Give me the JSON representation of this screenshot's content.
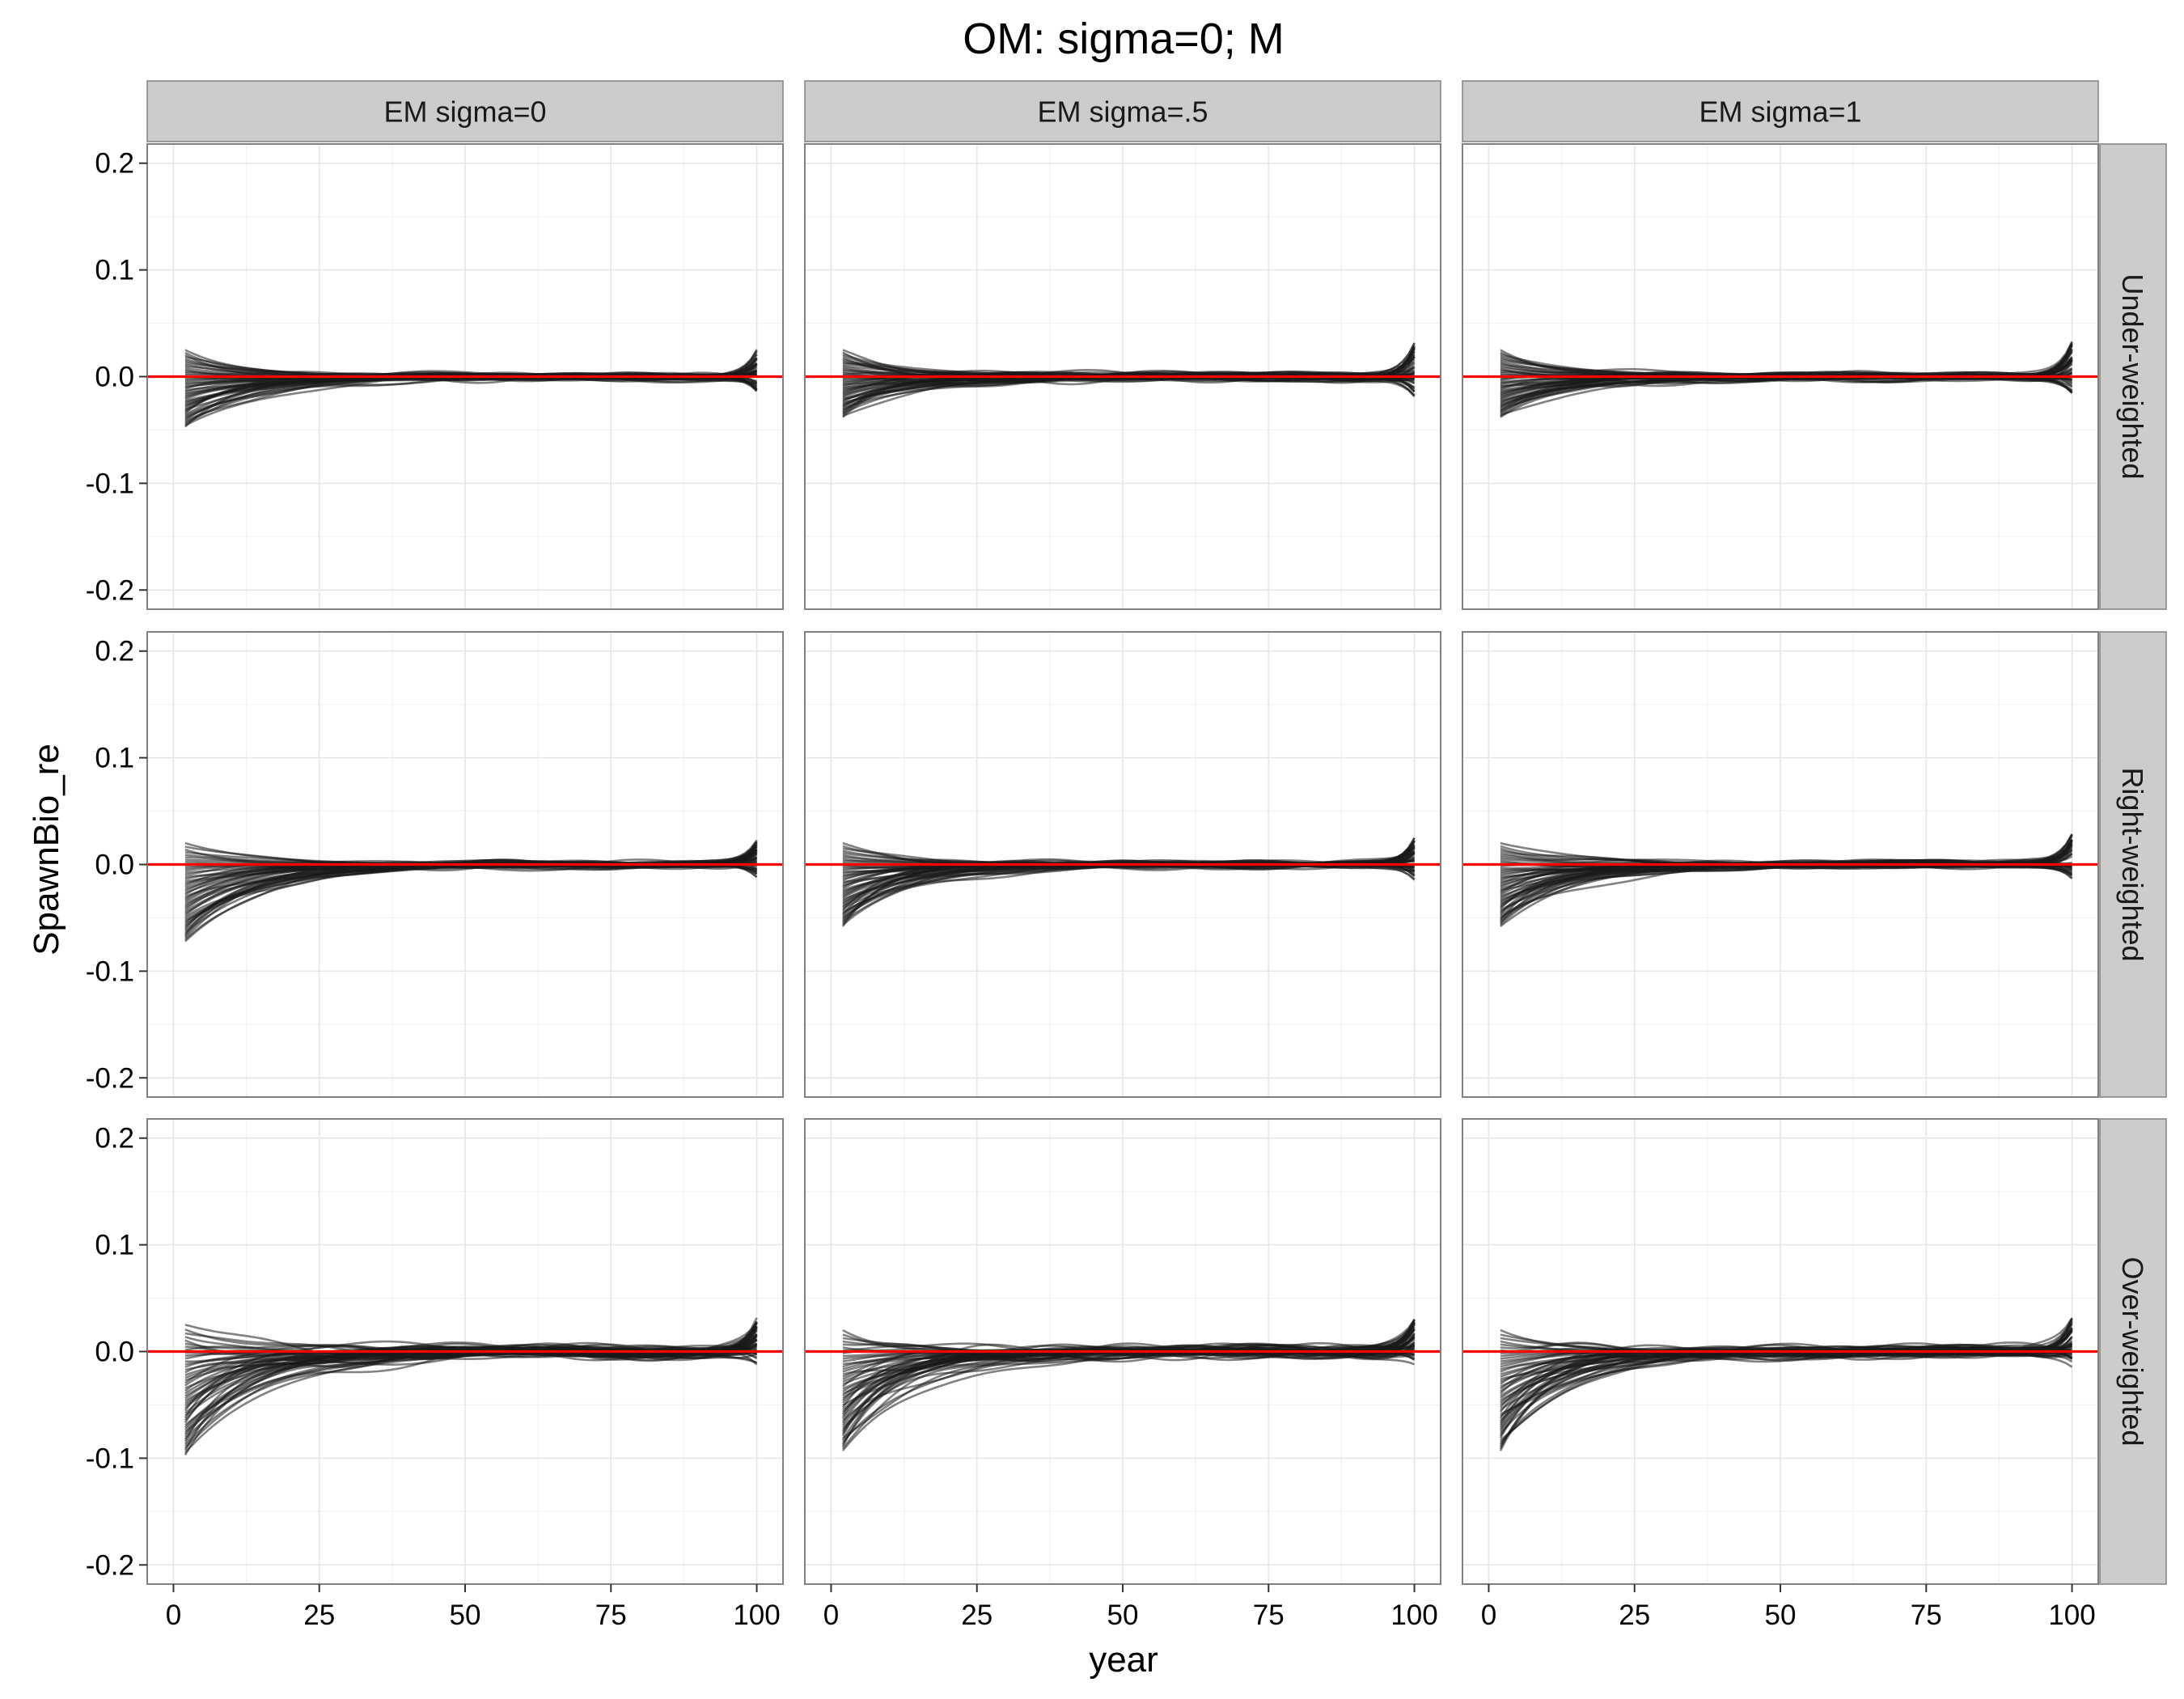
{
  "chart_data": {
    "type": "line",
    "title": "OM: sigma=0; M",
    "xlabel": "year",
    "ylabel": "SpawnBio_re",
    "xlim": [
      0,
      100
    ],
    "ylim": [
      -0.2,
      0.2
    ],
    "x_ticks": [
      0,
      25,
      50,
      75,
      100
    ],
    "y_ticks": [
      -0.2,
      -0.1,
      0.0,
      0.1,
      0.2
    ],
    "x_tick_labels": [
      "0",
      "25",
      "50",
      "75",
      "100"
    ],
    "y_tick_labels": [
      "-0.2",
      "-0.1",
      "0.0",
      "0.1",
      "0.2"
    ],
    "grid": true,
    "reference_line": {
      "y": 0.0,
      "color": "#ff0000"
    },
    "line_color": "#1a1a1a",
    "series_count": 50,
    "facet_columns": [
      "EM sigma=0",
      "EM sigma=.5",
      "EM sigma=1"
    ],
    "facet_rows": [
      "Under-weighted",
      "Right-weighted",
      "Over-weighted"
    ],
    "panels": [
      {
        "row": "Under-weighted",
        "col": "EM sigma=0",
        "start_min": -0.047,
        "start_max": 0.025,
        "end_min": -0.015,
        "end_max": 0.025,
        "mid_spread": 0.012
      },
      {
        "row": "Under-weighted",
        "col": "EM sigma=.5",
        "start_min": -0.038,
        "start_max": 0.025,
        "end_min": -0.017,
        "end_max": 0.032,
        "mid_spread": 0.012
      },
      {
        "row": "Under-weighted",
        "col": "EM sigma=1",
        "start_min": -0.038,
        "start_max": 0.025,
        "end_min": -0.015,
        "end_max": 0.034,
        "mid_spread": 0.012
      },
      {
        "row": "Right-weighted",
        "col": "EM sigma=0",
        "start_min": -0.072,
        "start_max": 0.02,
        "end_min": -0.012,
        "end_max": 0.022,
        "mid_spread": 0.01
      },
      {
        "row": "Right-weighted",
        "col": "EM sigma=.5",
        "start_min": -0.058,
        "start_max": 0.02,
        "end_min": -0.013,
        "end_max": 0.027,
        "mid_spread": 0.01
      },
      {
        "row": "Right-weighted",
        "col": "EM sigma=1",
        "start_min": -0.058,
        "start_max": 0.02,
        "end_min": -0.013,
        "end_max": 0.028,
        "mid_spread": 0.01
      },
      {
        "row": "Over-weighted",
        "col": "EM sigma=0",
        "start_min": -0.097,
        "start_max": 0.025,
        "end_min": -0.012,
        "end_max": 0.028,
        "mid_spread": 0.018
      },
      {
        "row": "Over-weighted",
        "col": "EM sigma=.5",
        "start_min": -0.093,
        "start_max": 0.02,
        "end_min": -0.012,
        "end_max": 0.03,
        "mid_spread": 0.018
      },
      {
        "row": "Over-weighted",
        "col": "EM sigma=1",
        "start_min": -0.093,
        "start_max": 0.02,
        "end_min": -0.012,
        "end_max": 0.03,
        "mid_spread": 0.018
      }
    ]
  }
}
